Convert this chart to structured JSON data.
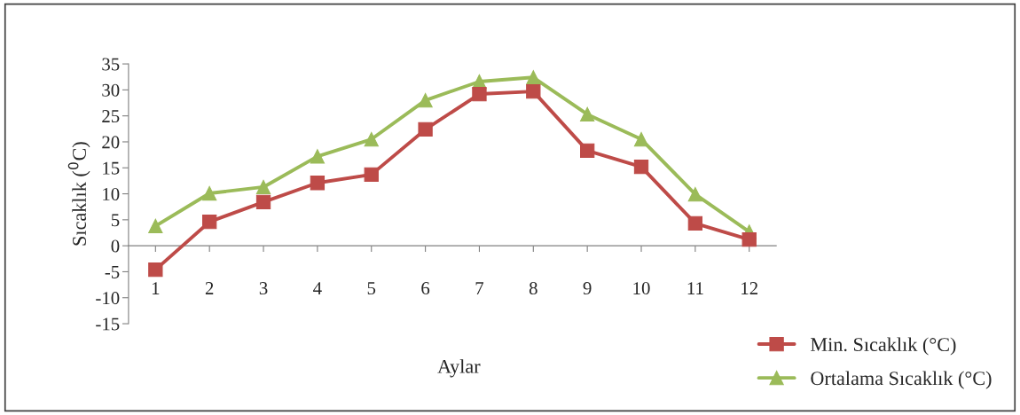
{
  "chart_data": {
    "type": "line",
    "xlabel": "Aylar",
    "ylabel": "Sıcaklık ($^{0}$C)",
    "categories": [
      "1",
      "2",
      "3",
      "4",
      "5",
      "6",
      "7",
      "8",
      "9",
      "10",
      "11",
      "12"
    ],
    "series": [
      {
        "name": "Min. Sıcaklık (°C)",
        "color": "#be4b48",
        "marker": "square",
        "values": [
          -4.6,
          4.6,
          8.4,
          12.1,
          13.7,
          22.4,
          29.2,
          29.7,
          18.3,
          15.2,
          4.3,
          1.2
        ]
      },
      {
        "name": "Ortalama Sıcaklık (°C)",
        "color": "#9bbb59",
        "marker": "triangle",
        "values": [
          3.8,
          10.1,
          11.3,
          17.2,
          20.5,
          28,
          31.6,
          32.4,
          25.3,
          20.5,
          9.9,
          2.7
        ]
      }
    ],
    "ylim": [
      -15,
      35
    ],
    "yticks": [
      -15,
      -10,
      -5,
      0,
      5,
      10,
      15,
      20,
      25,
      30,
      35
    ],
    "grid": false,
    "legend": "bottom right",
    "line_style": "solid"
  }
}
